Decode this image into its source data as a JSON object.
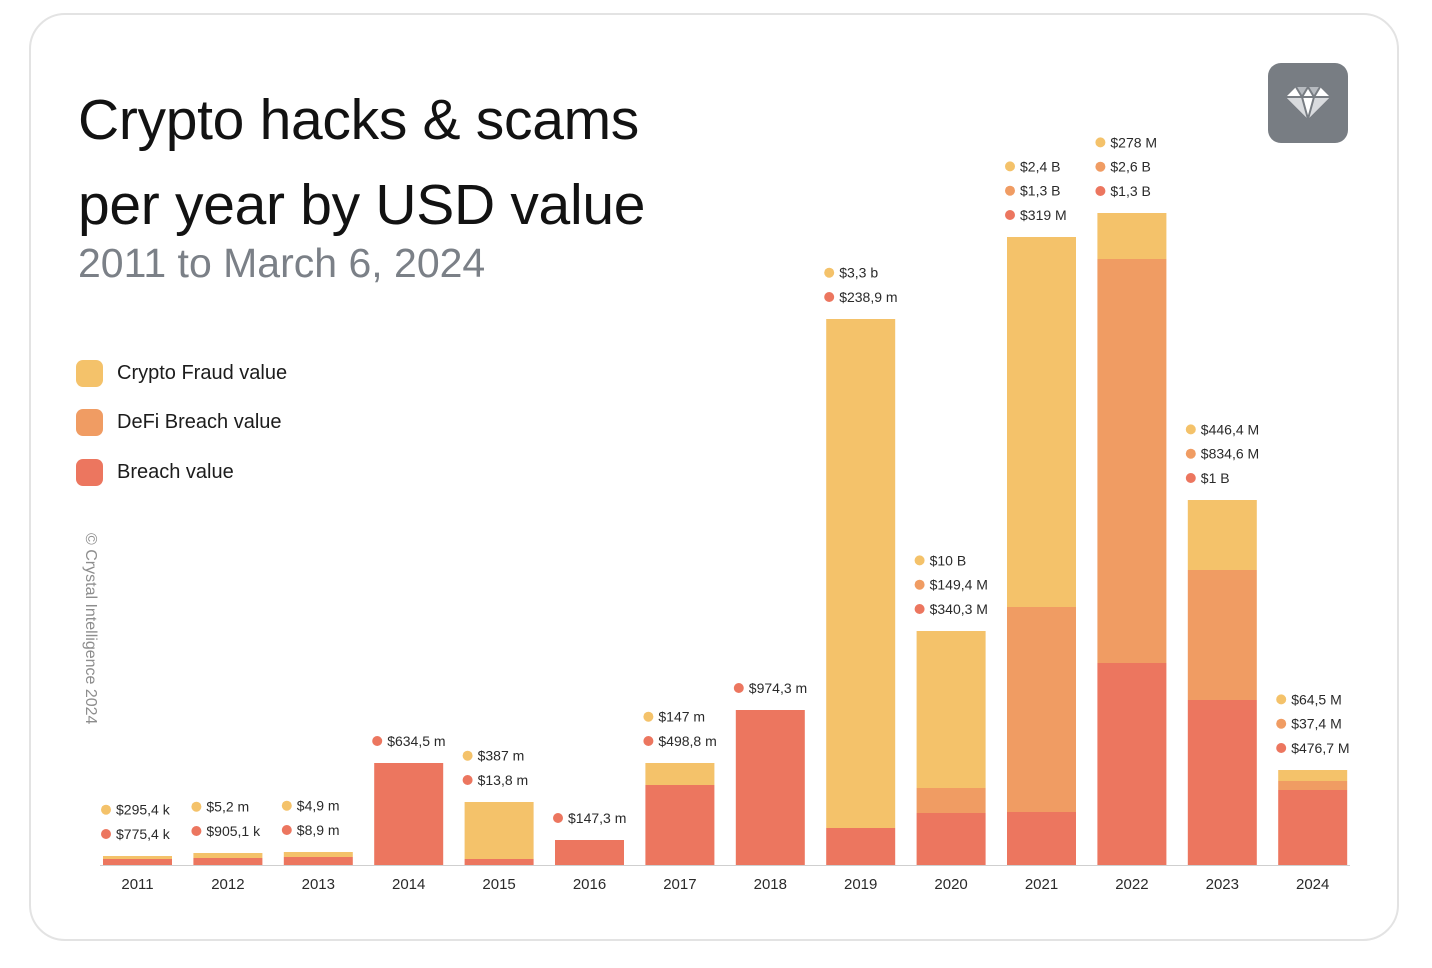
{
  "header": {
    "title_line1": "Crypto hacks & scams",
    "title_line2": "per year by USD value",
    "subtitle": "2011 to March 6, 2024"
  },
  "footer": {
    "copyright": "© Crystal Intelligence 2024"
  },
  "logo": {
    "icon": "diamond-icon",
    "background": "#787d83"
  },
  "colors": {
    "fraud": "#f4c26a",
    "defi": "#f09c63",
    "breach": "#ec765f",
    "axis": "#cfcfcf"
  },
  "chart_data": {
    "type": "bar",
    "stacked": true,
    "categories": [
      "2011",
      "2012",
      "2013",
      "2014",
      "2015",
      "2016",
      "2017",
      "2018",
      "2019",
      "2020",
      "2021",
      "2022",
      "2023",
      "2024"
    ],
    "legend": {
      "placement": "left",
      "entries": [
        "Crypto Fraud value",
        "DeFi Breach value",
        "Breach value"
      ]
    },
    "grid": false,
    "series": [
      {
        "name": "Crypto Fraud value",
        "key": "fraud",
        "values": [
          0.0002954,
          0.0052,
          0.0049,
          0,
          0.387,
          0,
          0.147,
          0,
          3.3,
          10,
          2.4,
          0.278,
          0.4464,
          0.0645
        ]
      },
      {
        "name": "DeFi Breach value",
        "key": "defi",
        "values": [
          0,
          0,
          0,
          0,
          0,
          0,
          0,
          0,
          0,
          0.1494,
          1.3,
          2.6,
          0.8346,
          0.0374
        ]
      },
      {
        "name": "Breach value",
        "key": "breach",
        "values": [
          0.0007754,
          0.0009051,
          0.0089,
          0.6345,
          0.0138,
          0.1473,
          0.4988,
          0.9743,
          0.2389,
          0.3403,
          0.319,
          1.3,
          1.0,
          0.4767
        ]
      }
    ],
    "value_unit": "USD billions",
    "data_labels": [
      [
        {
          "key": "fraud",
          "text": "$295,4 k"
        },
        {
          "key": "breach",
          "text": "$775,4 k"
        }
      ],
      [
        {
          "key": "fraud",
          "text": "$5,2 m"
        },
        {
          "key": "breach",
          "text": "$905,1 k"
        }
      ],
      [
        {
          "key": "fraud",
          "text": "$4,9 m"
        },
        {
          "key": "breach",
          "text": "$8,9 m"
        }
      ],
      [
        {
          "key": "breach",
          "text": "$634,5 m"
        }
      ],
      [
        {
          "key": "fraud",
          "text": "$387 m"
        },
        {
          "key": "breach",
          "text": "$13,8 m"
        }
      ],
      [
        {
          "key": "breach",
          "text": "$147,3 m"
        }
      ],
      [
        {
          "key": "fraud",
          "text": "$147 m"
        },
        {
          "key": "breach",
          "text": "$498,8 m"
        }
      ],
      [
        {
          "key": "breach",
          "text": "$974,3 m"
        }
      ],
      [
        {
          "key": "fraud",
          "text": "$3,3 b"
        },
        {
          "key": "breach",
          "text": "$238,9 m"
        }
      ],
      [
        {
          "key": "fraud",
          "text": "$10 B"
        },
        {
          "key": "defi",
          "text": "$149,4 M"
        },
        {
          "key": "breach",
          "text": "$340,3 M"
        }
      ],
      [
        {
          "key": "fraud",
          "text": "$2,4 B"
        },
        {
          "key": "defi",
          "text": "$1,3 B"
        },
        {
          "key": "breach",
          "text": "$319 M"
        }
      ],
      [
        {
          "key": "fraud",
          "text": "$278 M"
        },
        {
          "key": "defi",
          "text": "$2,6 B"
        },
        {
          "key": "breach",
          "text": "$1,3 B"
        }
      ],
      [
        {
          "key": "fraud",
          "text": "$446,4 M"
        },
        {
          "key": "defi",
          "text": "$834,6 M"
        },
        {
          "key": "breach",
          "text": "$1 B"
        }
      ],
      [
        {
          "key": "fraud",
          "text": "$64,5 M"
        },
        {
          "key": "defi",
          "text": "$37,4 M"
        },
        {
          "key": "breach",
          "text": "$476,7 M"
        }
      ]
    ]
  }
}
